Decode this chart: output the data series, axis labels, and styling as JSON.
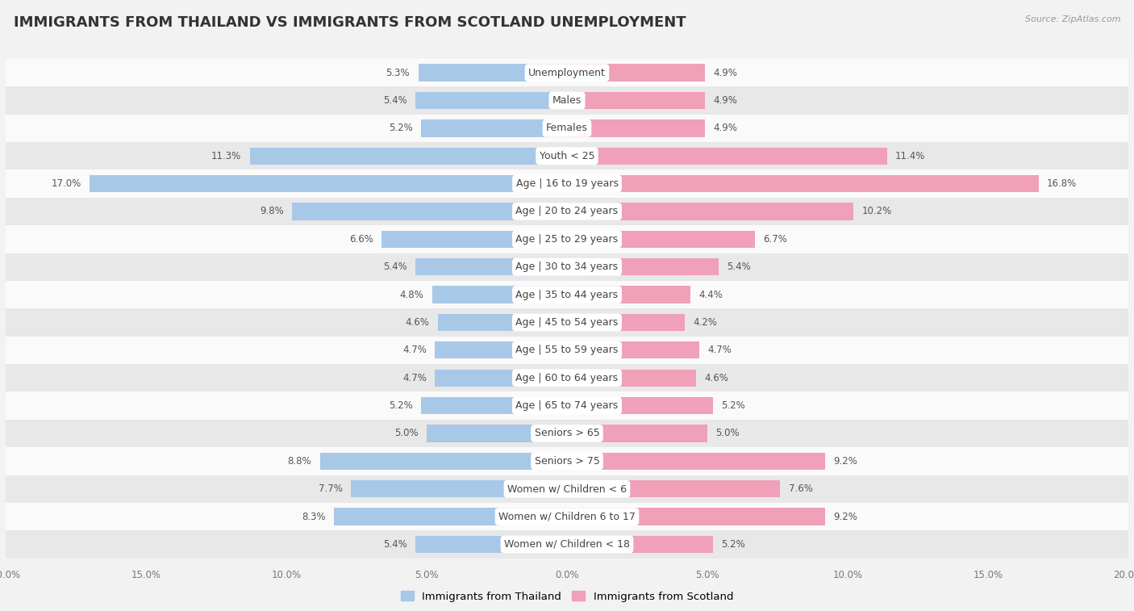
{
  "title": "IMMIGRANTS FROM THAILAND VS IMMIGRANTS FROM SCOTLAND UNEMPLOYMENT",
  "source": "Source: ZipAtlas.com",
  "categories": [
    "Unemployment",
    "Males",
    "Females",
    "Youth < 25",
    "Age | 16 to 19 years",
    "Age | 20 to 24 years",
    "Age | 25 to 29 years",
    "Age | 30 to 34 years",
    "Age | 35 to 44 years",
    "Age | 45 to 54 years",
    "Age | 55 to 59 years",
    "Age | 60 to 64 years",
    "Age | 65 to 74 years",
    "Seniors > 65",
    "Seniors > 75",
    "Women w/ Children < 6",
    "Women w/ Children 6 to 17",
    "Women w/ Children < 18"
  ],
  "thailand_values": [
    5.3,
    5.4,
    5.2,
    11.3,
    17.0,
    9.8,
    6.6,
    5.4,
    4.8,
    4.6,
    4.7,
    4.7,
    5.2,
    5.0,
    8.8,
    7.7,
    8.3,
    5.4
  ],
  "scotland_values": [
    4.9,
    4.9,
    4.9,
    11.4,
    16.8,
    10.2,
    6.7,
    5.4,
    4.4,
    4.2,
    4.7,
    4.6,
    5.2,
    5.0,
    9.2,
    7.6,
    9.2,
    5.2
  ],
  "thailand_color": "#a8c8e8",
  "scotland_color": "#f0a0b8",
  "thailand_label": "Immigrants from Thailand",
  "scotland_label": "Immigrants from Scotland",
  "axis_limit": 20.0,
  "background_color": "#f2f2f2",
  "row_bg_light": "#fafafa",
  "row_bg_dark": "#e8e8e8",
  "title_fontsize": 13,
  "label_fontsize": 9,
  "value_fontsize": 8.5,
  "bar_height": 0.62
}
